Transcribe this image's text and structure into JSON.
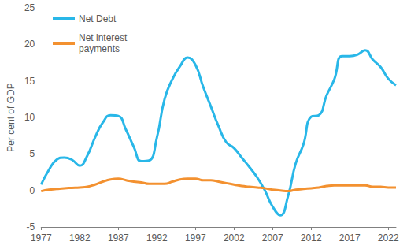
{
  "chart_data": {
    "type": "line",
    "y_label": "Per cent of GDP",
    "x": [
      1977,
      1978,
      1979,
      1980,
      1981,
      1982,
      1983,
      1984,
      1985,
      1986,
      1987,
      1988,
      1989,
      1990,
      1991,
      1992,
      1993,
      1994,
      1995,
      1996,
      1997,
      1998,
      1999,
      2000,
      2001,
      2002,
      2003,
      2004,
      2005,
      2006,
      2007,
      2008,
      2009,
      2010,
      2011,
      2012,
      2013,
      2014,
      2015,
      2016,
      2017,
      2018,
      2019,
      2020,
      2021,
      2022,
      2023
    ],
    "series": [
      {
        "name": "Net Debt",
        "color": "#29b7e8",
        "values": [
          0.8,
          2.8,
          4.2,
          4.5,
          4.2,
          3.4,
          4.8,
          7.3,
          9.3,
          10.3,
          10.2,
          8.3,
          6.0,
          4.0,
          4.1,
          7.2,
          12.5,
          15.2,
          17.0,
          18.2,
          17.2,
          14.2,
          11.5,
          8.8,
          6.6,
          5.8,
          4.5,
          3.2,
          1.8,
          0.0,
          -2.2,
          -3.4,
          -0.8,
          3.7,
          6.3,
          10.1,
          10.3,
          13.0,
          15.2,
          18.4,
          18.4,
          18.6,
          19.2,
          17.9,
          16.9,
          15.3,
          14.4
        ]
      },
      {
        "name": "Net interest\npayments",
        "color": "#f39130",
        "values": [
          -0.1,
          0.1,
          0.2,
          0.3,
          0.35,
          0.4,
          0.5,
          0.8,
          1.2,
          1.5,
          1.6,
          1.4,
          1.2,
          1.1,
          0.9,
          0.9,
          0.9,
          1.2,
          1.5,
          1.6,
          1.6,
          1.4,
          1.4,
          1.2,
          1.0,
          0.8,
          0.6,
          0.5,
          0.4,
          0.3,
          0.1,
          0.0,
          -0.1,
          0.1,
          0.2,
          0.3,
          0.4,
          0.6,
          0.7,
          0.7,
          0.7,
          0.7,
          0.7,
          0.5,
          0.5,
          0.4,
          0.4
        ]
      }
    ],
    "xlim": [
      1977,
      2023
    ],
    "xticks": [
      1977,
      1982,
      1987,
      1992,
      1997,
      2002,
      2007,
      2012,
      2017,
      2022
    ],
    "ylim": [
      -5,
      25
    ],
    "yticks": [
      -5,
      0,
      5,
      10,
      15,
      20,
      25
    ],
    "grid": false,
    "legend": "top-left"
  }
}
